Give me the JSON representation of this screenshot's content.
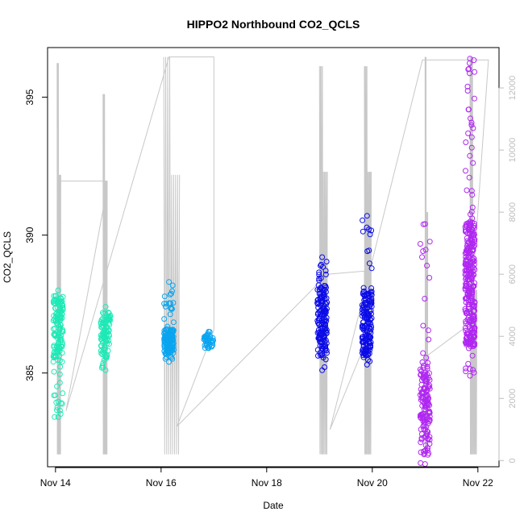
{
  "chart_data": {
    "type": "scatter",
    "title": "HIPPO2 Northbound CO2_QCLS",
    "xlabel": "Date",
    "ylabel": "CO2_QCLS",
    "x_ticks": [
      "Nov 14",
      "Nov 16",
      "Nov 18",
      "Nov 20",
      "Nov 22"
    ],
    "y_ticks": [
      385,
      390,
      395
    ],
    "y2_ticks": [
      0,
      2000,
      4000,
      6000,
      8000,
      10000,
      12000
    ],
    "xlim": [
      "Nov 13.85",
      "Nov 22.4"
    ],
    "ylim": [
      381.6,
      396.8
    ],
    "y2lim": [
      -200,
      13300
    ],
    "grid": false,
    "legend": "none",
    "right_axis_color": "#bdbdbd",
    "series": [
      {
        "color": "#1de9b6",
        "clusters": [
          {
            "x": "Nov 14.05",
            "y_low": 383.4,
            "y_high": 388.0,
            "y_dense": [
              385.4,
              387.8
            ],
            "n": 140
          },
          {
            "x": "Nov 14.95",
            "y_low": 385.1,
            "y_high": 387.4,
            "y_dense": [
              385.5,
              387.2
            ],
            "n": 90
          }
        ]
      },
      {
        "color": "#0aa5f0",
        "clusters": [
          {
            "x": "Nov 16.15",
            "y_low": 385.4,
            "y_high": 388.3,
            "y_dense": [
              385.7,
              386.6
            ],
            "n": 150
          },
          {
            "x": "Nov 16.9",
            "y_low": 385.9,
            "y_high": 386.5,
            "y_dense": [
              385.9,
              386.4
            ],
            "n": 40
          }
        ]
      },
      {
        "color": "#0a0ae8",
        "clusters": [
          {
            "x": "Nov 19.05",
            "y_low": 385.1,
            "y_high": 389.2,
            "y_dense": [
              385.8,
              388.2
            ],
            "n": 150
          },
          {
            "x": "Nov 19.9",
            "y_low": 385.3,
            "y_high": 390.7,
            "y_dense": [
              385.6,
              388.0
            ],
            "n": 160
          }
        ]
      },
      {
        "color": "#b026f2",
        "clusters": [
          {
            "x": "Nov 21.0",
            "y_low": 381.7,
            "y_high": 390.4,
            "y_dense": [
              382.0,
              385.4
            ],
            "n": 150
          },
          {
            "x": "Nov 21.85",
            "y_low": 384.9,
            "y_high": 396.4,
            "y_dense": [
              386.0,
              390.5
            ],
            "n": 320
          }
        ]
      }
    ],
    "altitude_trace": {
      "axis": "right",
      "color": "#c8c8c8",
      "profiles": [
        {
          "x": [
            "Nov 14.03",
            "Nov 14.1"
          ],
          "peaks": [
            12800,
            9200
          ],
          "base": 200
        },
        {
          "x": [
            "Nov 14.9",
            "Nov 14.98"
          ],
          "peaks": [
            11800,
            9000
          ],
          "base": 200
        },
        {
          "x": [
            "Nov 16.05",
            "Nov 16.35"
          ],
          "peaks": [
            13000,
            9200
          ],
          "base": 200
        },
        {
          "x": [
            "Nov 19.0",
            "Nov 19.15"
          ],
          "peaks": [
            12700,
            9300
          ],
          "base": 200
        },
        {
          "x": [
            "Nov 19.85",
            "Nov 19.98"
          ],
          "peaks": [
            12700,
            9300
          ],
          "base": 200
        },
        {
          "x": [
            "Nov 21.0",
            "Nov 21.05"
          ],
          "peaks": [
            13000,
            8000
          ],
          "base": 200
        },
        {
          "x": [
            "Nov 21.85",
            "Nov 21.98"
          ],
          "peaks": [
            13000,
            5500
          ],
          "base": 200
        }
      ],
      "path": [
        [
          "Nov 14.05",
          9000
        ],
        [
          "Nov 14.98",
          9000
        ],
        [
          "Nov 14.98",
          8800
        ],
        [
          "Nov 14.2",
          1600
        ],
        [
          "Nov 16.15",
          13000
        ],
        [
          "Nov 17.0",
          13000
        ],
        [
          "Nov 17.0",
          4200
        ],
        [
          "Nov 16.3",
          1100
        ],
        [
          "Nov 19.15",
          6000
        ],
        [
          "Nov 19.85",
          6100
        ],
        [
          "Nov 19.85",
          3700
        ],
        [
          "Nov 19.2",
          1000
        ],
        [
          "Nov 20.95",
          12900
        ],
        [
          "Nov 22.2",
          12900
        ],
        [
          "Nov 21.85",
          4400
        ],
        [
          "Nov 20.9",
          3200
        ]
      ]
    }
  }
}
